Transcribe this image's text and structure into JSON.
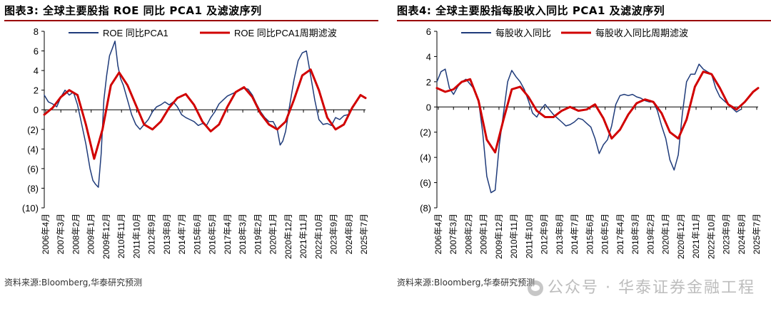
{
  "panels": [
    {
      "title": "图表3:  全球主要股指 ROE 同比 PCA1 及滤波序列",
      "source": "资料来源:Bloomberg,华泰研究预测"
    },
    {
      "title": "图表4:  全球主要股指每股收入同比 PCA1 及滤波序列",
      "source": "资料来源:Bloomberg,华泰研究预测"
    }
  ],
  "watermark": "公众号 · 华泰证券金融工程",
  "colors": {
    "raw": "#1f3b7a",
    "filtered": "#d10000",
    "title_rule": "#9a0000"
  },
  "chart_data": [
    {
      "type": "line",
      "title": "",
      "xlabel": "",
      "ylabel": "",
      "ylim": [
        -10,
        8
      ],
      "yticks": [
        -10,
        -8,
        -6,
        -4,
        -2,
        0,
        2,
        4,
        6,
        8
      ],
      "ytick_labels": [
        "(10)",
        "(8)",
        "(6)",
        "(4)",
        "(2)",
        "0",
        "2",
        "4",
        "6",
        "8"
      ],
      "xlim": [
        2006.25,
        2025.55
      ],
      "xtick_labels": [
        "2006年4月",
        "2007年3月",
        "2008年2月",
        "2009年1月",
        "2009年12月",
        "2010年11月",
        "2011年10月",
        "2012年9月",
        "2013年8月",
        "2014年7月",
        "2015年6月",
        "2016年5月",
        "2017年4月",
        "2018年3月",
        "2019年2月",
        "2020年1月",
        "2020年12月",
        "2021年11月",
        "2022年10月",
        "2023年9月",
        "2024年8月",
        "2025年7月"
      ],
      "legend_position": "top",
      "series": [
        {
          "name": "ROE 同比PCA1",
          "role": "raw",
          "x": [
            2006.25,
            2006.5,
            2006.75,
            2007.0,
            2007.25,
            2007.5,
            2007.75,
            2008.0,
            2008.25,
            2008.5,
            2008.75,
            2009.0,
            2009.17,
            2009.33,
            2009.5,
            2009.67,
            2009.83,
            2010.0,
            2010.17,
            2010.33,
            2010.5,
            2010.67,
            2010.83,
            2011.0,
            2011.25,
            2011.5,
            2011.75,
            2012.0,
            2012.25,
            2012.5,
            2012.75,
            2013.0,
            2013.25,
            2013.5,
            2013.75,
            2014.0,
            2014.25,
            2014.5,
            2014.75,
            2015.0,
            2015.25,
            2015.5,
            2015.75,
            2016.0,
            2016.25,
            2016.5,
            2016.75,
            2017.0,
            2017.25,
            2017.5,
            2017.75,
            2018.0,
            2018.25,
            2018.5,
            2018.75,
            2019.0,
            2019.25,
            2019.5,
            2019.75,
            2020.0,
            2020.25,
            2020.42,
            2020.58,
            2020.75,
            2021.0,
            2021.25,
            2021.5,
            2021.75,
            2022.0,
            2022.25,
            2022.5,
            2022.75,
            2023.0,
            2023.25,
            2023.5,
            2023.75,
            2024.0,
            2024.25,
            2024.5
          ],
          "values": [
            1.5,
            0.8,
            0.6,
            0.3,
            1.3,
            2.0,
            1.5,
            1.8,
            0.5,
            -1.5,
            -3.5,
            -6.0,
            -7.2,
            -7.6,
            -7.9,
            -4.5,
            1.0,
            3.5,
            5.5,
            6.2,
            7.0,
            4.5,
            3.2,
            2.5,
            1.0,
            -0.5,
            -1.5,
            -2.0,
            -1.5,
            -1.0,
            -0.2,
            0.3,
            0.5,
            0.8,
            0.5,
            0.8,
            0.3,
            -0.5,
            -0.8,
            -1.0,
            -1.2,
            -1.6,
            -1.4,
            -1.6,
            -0.8,
            -0.2,
            0.6,
            1.0,
            1.4,
            1.6,
            1.8,
            2.0,
            2.2,
            2.1,
            1.5,
            0.6,
            -0.2,
            -0.8,
            -1.2,
            -1.2,
            -2.0,
            -3.6,
            -3.2,
            -2.2,
            0.5,
            3.0,
            5.0,
            5.8,
            6.0,
            3.5,
            1.0,
            -1.0,
            -1.5,
            -1.4,
            -1.6,
            -0.8,
            -1.0,
            -0.6,
            -0.5
          ]
        },
        {
          "name": "ROE 同比PCA1周期滤波",
          "role": "filtered",
          "x": [
            2006.25,
            2006.75,
            2007.25,
            2007.75,
            2008.25,
            2008.75,
            2009.25,
            2009.75,
            2010.25,
            2010.75,
            2011.25,
            2011.75,
            2012.25,
            2012.75,
            2013.25,
            2013.75,
            2014.25,
            2014.75,
            2015.25,
            2015.75,
            2016.25,
            2016.75,
            2017.25,
            2017.75,
            2018.25,
            2018.75,
            2019.25,
            2019.75,
            2020.25,
            2020.75,
            2021.25,
            2021.75,
            2022.25,
            2022.75,
            2023.25,
            2023.75,
            2024.25,
            2024.75,
            2025.25,
            2025.55
          ],
          "values": [
            -0.5,
            0.2,
            1.3,
            2.0,
            1.5,
            -1.5,
            -5.0,
            -2.0,
            2.5,
            3.8,
            2.5,
            0.5,
            -1.5,
            -2.0,
            -1.2,
            0.2,
            1.2,
            1.6,
            0.5,
            -1.2,
            -2.2,
            -1.5,
            0.3,
            1.8,
            2.3,
            1.3,
            -0.4,
            -1.5,
            -2.0,
            -1.2,
            1.0,
            3.5,
            4.1,
            2.0,
            -0.8,
            -2.0,
            -1.5,
            0.2,
            1.5,
            1.2
          ]
        }
      ]
    },
    {
      "type": "line",
      "title": "",
      "xlabel": "",
      "ylabel": "",
      "ylim": [
        -8,
        6
      ],
      "yticks": [
        -8,
        -6,
        -4,
        -2,
        0,
        2,
        4,
        6
      ],
      "ytick_labels": [
        "(8)",
        "(6)",
        "(4)",
        "(2)",
        "0",
        "2",
        "4",
        "6"
      ],
      "xlim": [
        2006.25,
        2025.55
      ],
      "xtick_labels": [
        "2006年4月",
        "2007年3月",
        "2008年2月",
        "2009年1月",
        "2009年12月",
        "2010年11月",
        "2011年10月",
        "2012年9月",
        "2013年8月",
        "2014年7月",
        "2015年6月",
        "2016年5月",
        "2017年4月",
        "2018年3月",
        "2019年2月",
        "2020年1月",
        "2020年12月",
        "2021年11月",
        "2022年10月",
        "2023年9月",
        "2024年8月",
        "2025年7月"
      ],
      "legend_position": "top",
      "series": [
        {
          "name": "每股收入同比",
          "role": "raw",
          "x": [
            2006.25,
            2006.5,
            2006.75,
            2007.0,
            2007.25,
            2007.5,
            2007.75,
            2008.0,
            2008.25,
            2008.5,
            2008.75,
            2009.0,
            2009.25,
            2009.5,
            2009.75,
            2010.0,
            2010.25,
            2010.5,
            2010.75,
            2011.0,
            2011.25,
            2011.5,
            2011.75,
            2012.0,
            2012.25,
            2012.5,
            2012.75,
            2013.0,
            2013.25,
            2013.5,
            2013.75,
            2014.0,
            2014.25,
            2014.5,
            2014.75,
            2015.0,
            2015.25,
            2015.5,
            2015.75,
            2016.0,
            2016.25,
            2016.5,
            2016.75,
            2017.0,
            2017.25,
            2017.5,
            2017.75,
            2018.0,
            2018.25,
            2018.5,
            2018.75,
            2019.0,
            2019.25,
            2019.5,
            2019.75,
            2020.0,
            2020.25,
            2020.5,
            2020.75,
            2021.0,
            2021.25,
            2021.5,
            2021.75,
            2022.0,
            2022.25,
            2022.5,
            2022.75,
            2023.0,
            2023.25,
            2023.5,
            2023.75,
            2024.0,
            2024.25,
            2024.5
          ],
          "values": [
            2.0,
            2.8,
            3.0,
            1.5,
            1.0,
            1.6,
            2.0,
            2.2,
            1.8,
            1.4,
            0.5,
            -2.0,
            -5.5,
            -6.8,
            -6.6,
            -3.0,
            -0.5,
            2.0,
            2.9,
            2.4,
            2.0,
            1.4,
            0.5,
            -0.5,
            -0.8,
            -0.2,
            0.2,
            -0.2,
            -0.6,
            -0.9,
            -1.2,
            -1.5,
            -1.4,
            -1.2,
            -0.9,
            -1.0,
            -1.3,
            -1.6,
            -2.5,
            -3.7,
            -3.0,
            -2.6,
            -1.5,
            0.2,
            0.9,
            1.0,
            0.9,
            1.0,
            0.8,
            0.7,
            0.5,
            0.4,
            0.4,
            -0.3,
            -1.5,
            -2.5,
            -4.2,
            -5.0,
            -3.8,
            -0.5,
            2.0,
            2.6,
            2.6,
            3.4,
            3.0,
            2.8,
            2.6,
            1.5,
            0.8,
            0.5,
            0.2,
            -0.1,
            -0.4,
            -0.2
          ]
        },
        {
          "name": "每股收入同比周期滤波",
          "role": "filtered",
          "x": [
            2006.25,
            2006.75,
            2007.25,
            2007.75,
            2008.25,
            2008.75,
            2009.25,
            2009.75,
            2010.25,
            2010.75,
            2011.25,
            2011.75,
            2012.25,
            2012.75,
            2013.25,
            2013.75,
            2014.25,
            2014.75,
            2015.25,
            2015.75,
            2016.25,
            2016.75,
            2017.25,
            2017.75,
            2018.25,
            2018.75,
            2019.25,
            2019.75,
            2020.25,
            2020.75,
            2021.25,
            2021.75,
            2022.25,
            2022.75,
            2023.25,
            2023.75,
            2024.25,
            2024.75,
            2025.25,
            2025.55
          ],
          "values": [
            1.5,
            1.2,
            1.4,
            2.0,
            2.2,
            0.5,
            -2.6,
            -3.6,
            -1.0,
            1.4,
            1.6,
            0.8,
            -0.3,
            -0.8,
            -0.8,
            -0.3,
            0.0,
            -0.3,
            -0.2,
            0.2,
            -0.9,
            -2.5,
            -1.8,
            -0.6,
            0.3,
            0.6,
            0.4,
            -0.5,
            -2.0,
            -2.5,
            -1.0,
            1.6,
            2.8,
            2.6,
            1.5,
            0.2,
            -0.2,
            0.4,
            1.2,
            1.5
          ]
        }
      ]
    }
  ]
}
